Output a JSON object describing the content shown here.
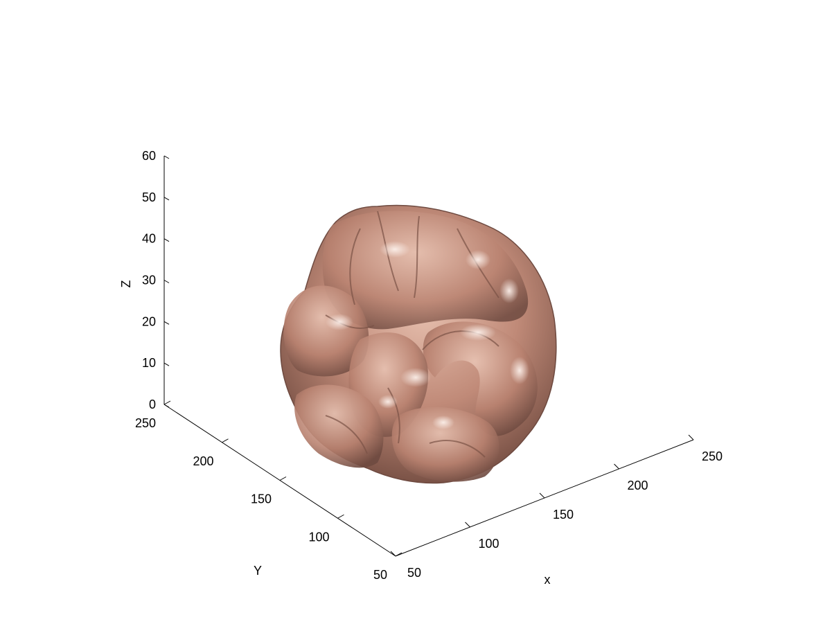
{
  "chart_data": {
    "type": "surface3d",
    "title": "",
    "colors": {
      "surface": "#c08a78",
      "highlight": "#f2e0d8",
      "shadow": "#6e4a40",
      "axis": "#000000"
    },
    "axes": {
      "x": {
        "label": "x",
        "lim": [
          50,
          250
        ],
        "ticks": [
          50,
          100,
          150,
          200,
          250
        ]
      },
      "y": {
        "label": "Y",
        "lim": [
          50,
          250
        ],
        "ticks": [
          50,
          100,
          150,
          200,
          250
        ]
      },
      "z": {
        "label": "Z",
        "lim": [
          0,
          60
        ],
        "ticks": [
          0,
          10,
          20,
          30,
          40,
          50,
          60
        ]
      }
    },
    "grid": false,
    "legend": "none",
    "surface_description_icon": "brain-isosurface"
  }
}
